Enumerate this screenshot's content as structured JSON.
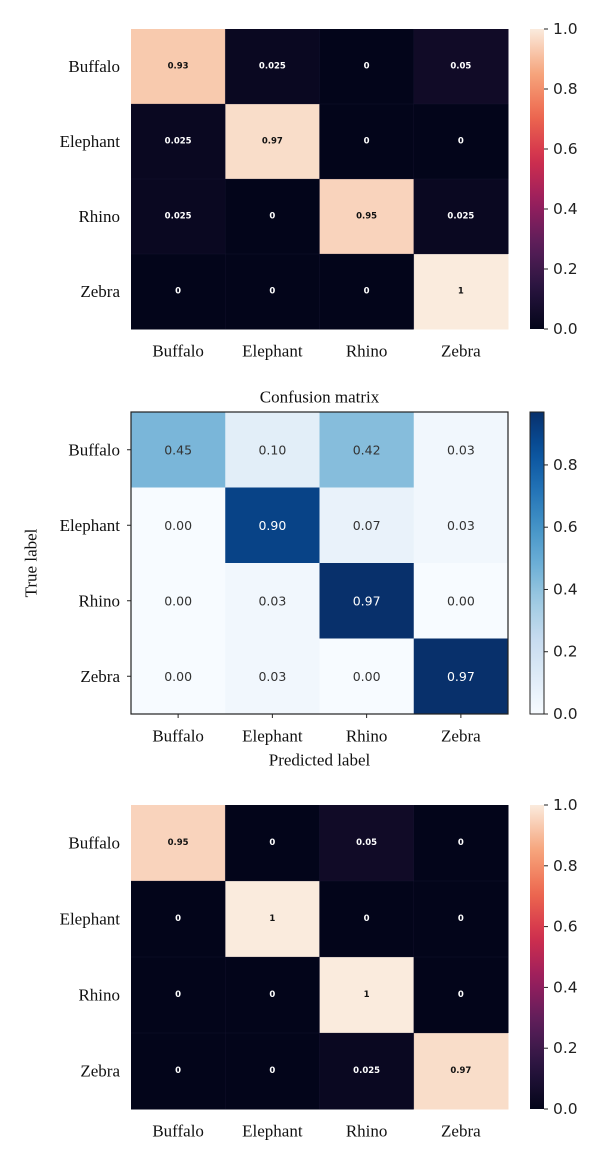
{
  "chart_data": [
    {
      "type": "heatmap",
      "title": "",
      "xlabel": "",
      "ylabel": "",
      "x_categories": [
        "Buffalo",
        "Elephant",
        "Rhino",
        "Zebra"
      ],
      "y_categories": [
        "Buffalo",
        "Elephant",
        "Rhino",
        "Zebra"
      ],
      "values": [
        [
          0.93,
          0.025,
          0,
          0.05
        ],
        [
          0.025,
          0.97,
          0,
          0
        ],
        [
          0.025,
          0,
          0.95,
          0.025
        ],
        [
          0,
          0,
          0,
          1
        ]
      ],
      "cell_labels": [
        [
          "0.93",
          "0.025",
          "0",
          "0.05"
        ],
        [
          "0.025",
          "0.97",
          "0",
          "0"
        ],
        [
          "0.025",
          "0",
          "0.95",
          "0.025"
        ],
        [
          "0",
          "0",
          "0",
          "1"
        ]
      ],
      "colormap": "rocket",
      "colorbar_range": [
        0.0,
        1.0
      ],
      "colorbar_ticks": [
        "0.0",
        "0.2",
        "0.4",
        "0.6",
        "0.8",
        "1.0"
      ]
    },
    {
      "type": "heatmap",
      "title": "Confusion matrix",
      "xlabel": "Predicted label",
      "ylabel": "True label",
      "x_categories": [
        "Buffalo",
        "Elephant",
        "Rhino",
        "Zebra"
      ],
      "y_categories": [
        "Buffalo",
        "Elephant",
        "Rhino",
        "Zebra"
      ],
      "values": [
        [
          0.45,
          0.1,
          0.42,
          0.03
        ],
        [
          0.0,
          0.9,
          0.07,
          0.03
        ],
        [
          0.0,
          0.03,
          0.97,
          0.0
        ],
        [
          0.0,
          0.03,
          0.0,
          0.97
        ]
      ],
      "cell_labels": [
        [
          "0.45",
          "0.10",
          "0.42",
          "0.03"
        ],
        [
          "0.00",
          "0.90",
          "0.07",
          "0.03"
        ],
        [
          "0.00",
          "0.03",
          "0.97",
          "0.00"
        ],
        [
          "0.00",
          "0.03",
          "0.00",
          "0.97"
        ]
      ],
      "colormap": "Blues",
      "colorbar_range": [
        0.0,
        0.97
      ],
      "colorbar_ticks": [
        "0.0",
        "0.2",
        "0.4",
        "0.6",
        "0.8"
      ]
    },
    {
      "type": "heatmap",
      "title": "",
      "xlabel": "",
      "ylabel": "",
      "x_categories": [
        "Buffalo",
        "Elephant",
        "Rhino",
        "Zebra"
      ],
      "y_categories": [
        "Buffalo",
        "Elephant",
        "Rhino",
        "Zebra"
      ],
      "values": [
        [
          0.95,
          0,
          0.05,
          0
        ],
        [
          0,
          1,
          0,
          0
        ],
        [
          0,
          0,
          1,
          0
        ],
        [
          0,
          0,
          0.025,
          0.97
        ]
      ],
      "cell_labels": [
        [
          "0.95",
          "0",
          "0.05",
          "0"
        ],
        [
          "0",
          "1",
          "0",
          "0"
        ],
        [
          "0",
          "0",
          "1",
          "0"
        ],
        [
          "0",
          "0",
          "0.025",
          "0.97"
        ]
      ],
      "colormap": "rocket",
      "colorbar_range": [
        0.0,
        1.0
      ],
      "colorbar_ticks": [
        "0.0",
        "0.2",
        "0.4",
        "0.6",
        "0.8",
        "1.0"
      ]
    }
  ]
}
